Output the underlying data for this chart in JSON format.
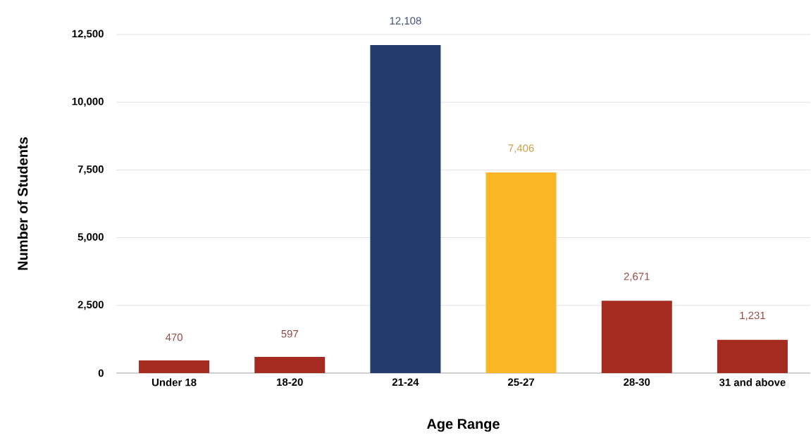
{
  "chart_data": {
    "type": "bar",
    "xlabel": "Age Range",
    "ylabel": "Number of Students",
    "categories": [
      "Under 18",
      "18-20",
      "21-24",
      "25-27",
      "28-30",
      "31 and above"
    ],
    "values": [
      470,
      597,
      12108,
      7406,
      2671,
      1231
    ],
    "colors": [
      "#a52a1f",
      "#a52a1f",
      "#233a6e",
      "#fbb625",
      "#a52a1f",
      "#a52a1f"
    ],
    "value_labels": [
      "470",
      "597",
      "12,108",
      "7,406",
      "2,671",
      "1,231"
    ],
    "ylim": [
      0,
      12500
    ],
    "yticks": [
      0,
      {
        "value": 2500,
        "label": "2,500"
      },
      {
        "value": 5000,
        "label": "5,000"
      },
      {
        "value": 7500,
        "label": "7,500"
      },
      {
        "value": 10000,
        "label": "10,000"
      },
      {
        "value": 12500,
        "label": "12,500"
      }
    ],
    "grid": "y"
  }
}
